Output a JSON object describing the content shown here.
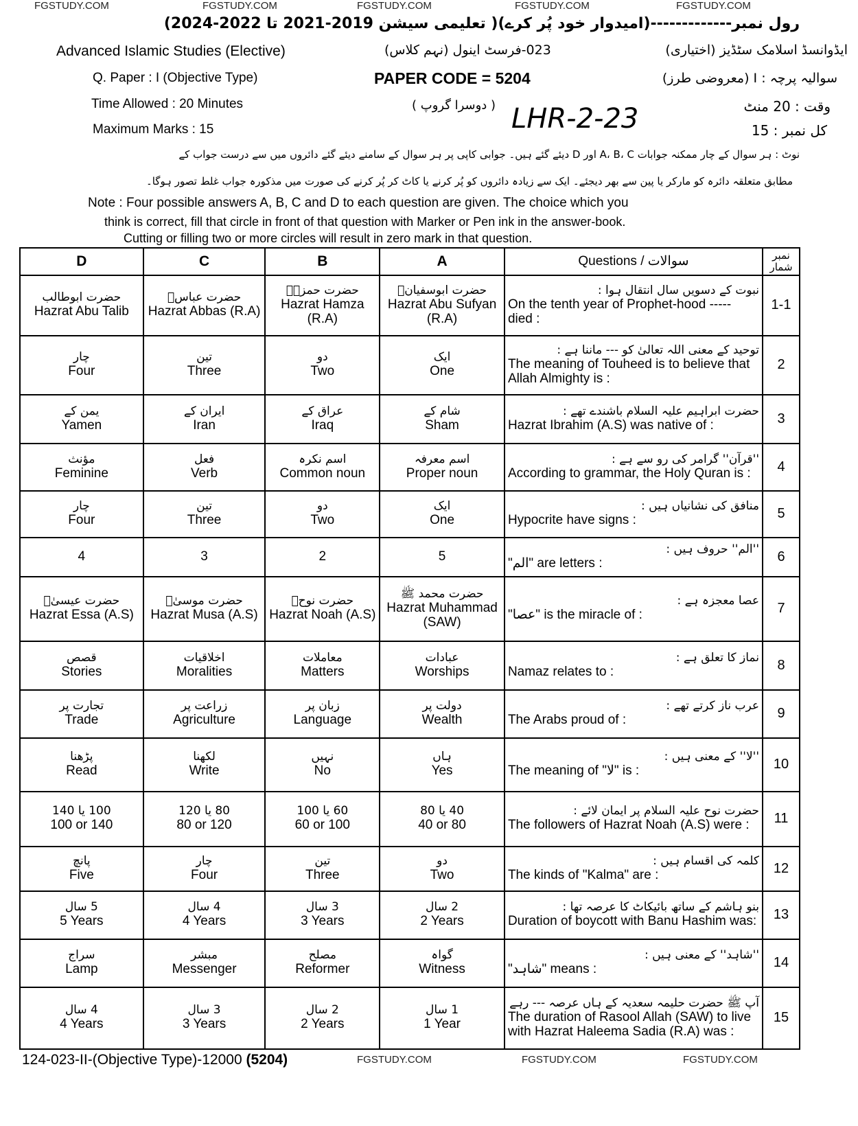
{
  "watermarks": [
    "FGSTUDY.COM",
    "FGSTUDY.COM",
    "FGSTUDY.COM",
    "FGSTUDY.COM",
    "FGSTUDY.COM"
  ],
  "header": {
    "roll_line": "رول نمبر-------------(امیدوار خود پُر کرے)( تعلیمی سیشن 2019-2021 تا 2022-2024)",
    "subject_en": "Advanced Islamic Studies (Elective)",
    "subject_ur": "ایڈوانسڈ اسلامک سٹڈیز (اختیاری)",
    "class_ur": "023-فرسٹ اینول (نہم کلاس)",
    "paper_en": "Q. Paper : I (Objective Type)",
    "paper_code": "PAPER CODE = 5204",
    "paper_ur": "سوالیہ پرچہ : I (معروضی طرز)",
    "time_en": "Time Allowed : 20 Minutes",
    "group_ur": "( دوسرا گروپ )",
    "handwritten": "LHR-2-23",
    "time_ur": "وقت : 20 منٹ",
    "marks_en": "Maximum Marks : 15",
    "marks_ur": "کل نمبر : 15",
    "note_ur_1": "نوٹ : ہر سوال کے چار ممکنہ جوابات A، B، C اور D دیئے گئے ہیں۔ جوابی کاپی پر ہر سوال کے سامنے دیئے گئے دائروں میں سے درست جواب کے",
    "note_ur_2": "مطابق متعلقہ دائرہ کو مارکر یا پین سے بھر دیجئے۔ ایک سے زیادہ دائروں کو پُر کرنے یا کاٹ کر پُر کرنے کی صورت میں مذکورہ جواب غلط تصور ہوگا۔",
    "note_en_1": "Note : Four possible answers A, B, C and D to each question are given. The choice which you",
    "note_en_2": "think is correct, fill that circle in front of that question with Marker or Pen ink in the answer-book.",
    "note_en_3": "Cutting or filling two or more circles will result in zero mark in that question."
  },
  "table": {
    "headers": {
      "d": "D",
      "c": "C",
      "b": "B",
      "a": "A",
      "questions": "Questions / سوالات",
      "number": "نمبر شمار"
    },
    "rows": [
      {
        "no": "1-1",
        "q_ur": "نبوت کے دسویں سال انتقال ہوا :",
        "q_en": "On the tenth year of Prophet-hood ----- died :",
        "a_ur": "حضرت ابوسفیانؓ",
        "a": "Hazrat Abu Sufyan (R.A)",
        "b_ur": "حضرت حمزہؓ",
        "b": "Hazrat Hamza (R.A)",
        "c_ur": "حضرت عباسؓ",
        "c": "Hazrat Abbas (R.A)",
        "d_ur": "حضرت ابوطالب",
        "d": "Hazrat Abu Talib"
      },
      {
        "no": "2",
        "q_ur": "توحید کے معنی اللہ تعالیٰ کو --- ماننا ہے :",
        "q_en": "The meaning of Touheed is to believe that Allah Almighty is :",
        "a_ur": "ایک",
        "a": "One",
        "b_ur": "دو",
        "b": "Two",
        "c_ur": "تین",
        "c": "Three",
        "d_ur": "چار",
        "d": "Four"
      },
      {
        "no": "3",
        "q_ur": "حضرت ابراہیم علیہ السلام باشندے تھے :",
        "q_en": "Hazrat Ibrahim (A.S) was native of :",
        "a_ur": "شام کے",
        "a": "Sham",
        "b_ur": "عراق کے",
        "b": "Iraq",
        "c_ur": "ایران کے",
        "c": "Iran",
        "d_ur": "یمن کے",
        "d": "Yamen"
      },
      {
        "no": "4",
        "q_ur": "''قرآن'' گرامر کی رو سے ہے :",
        "q_en": "According to grammar, the Holy Quran is :",
        "a_ur": "اسم معرفہ",
        "a": "Proper noun",
        "b_ur": "اسم نکرہ",
        "b": "Common noun",
        "c_ur": "فعل",
        "c": "Verb",
        "d_ur": "مؤنث",
        "d": "Feminine"
      },
      {
        "no": "5",
        "q_ur": "منافق کی نشانیاں ہیں :",
        "q_en": "Hypocrite have signs :",
        "a_ur": "ایک",
        "a": "One",
        "b_ur": "دو",
        "b": "Two",
        "c_ur": "تین",
        "c": "Three",
        "d_ur": "چار",
        "d": "Four"
      },
      {
        "no": "6",
        "q_ur": "''الم'' حروف ہیں :",
        "q_en": "\"الم\" are letters :",
        "a_ur": "",
        "a": "5",
        "b_ur": "",
        "b": "2",
        "c_ur": "",
        "c": "3",
        "d_ur": "",
        "d": "4"
      },
      {
        "no": "7",
        "q_ur": "عصا معجزہ ہے :",
        "q_en": "\"عصا\" is the miracle of :",
        "a_ur": "حضرت محمد ﷺ",
        "a": "Hazrat Muhammad (SAW)",
        "b_ur": "حضرت نوحؑ",
        "b": "Hazrat Noah (A.S)",
        "c_ur": "حضرت موسیٰؑ",
        "c": "Hazrat Musa (A.S)",
        "d_ur": "حضرت عیسیٰؑ",
        "d": "Hazrat Essa (A.S)"
      },
      {
        "no": "8",
        "q_ur": "نماز کا تعلق ہے :",
        "q_en": "Namaz relates to :",
        "a_ur": "عبادات",
        "a": "Worships",
        "b_ur": "معاملات",
        "b": "Matters",
        "c_ur": "اخلاقیات",
        "c": "Moralities",
        "d_ur": "قصص",
        "d": "Stories"
      },
      {
        "no": "9",
        "q_ur": "عرب ناز کرتے تھے :",
        "q_en": "The Arabs proud of :",
        "a_ur": "دولت پر",
        "a": "Wealth",
        "b_ur": "زبان پر",
        "b": "Language",
        "c_ur": "زراعت پر",
        "c": "Agriculture",
        "d_ur": "تجارت پر",
        "d": "Trade"
      },
      {
        "no": "10",
        "q_ur": "''لا'' کے معنی ہیں :",
        "q_en": "The meaning of \"لا\" is :",
        "a_ur": "ہاں",
        "a": "Yes",
        "b_ur": "نہیں",
        "b": "No",
        "c_ur": "لکھنا",
        "c": "Write",
        "d_ur": "پڑھنا",
        "d": "Read"
      },
      {
        "no": "11",
        "q_ur": "حضرت نوح علیہ السلام پر ایمان لائے :",
        "q_en": "The followers of Hazrat Noah (A.S) were :",
        "a_ur": "40 یا 80",
        "a": "40 or 80",
        "b_ur": "60 یا 100",
        "b": "60 or 100",
        "c_ur": "80 یا 120",
        "c": "80 or 120",
        "d_ur": "100 یا 140",
        "d": "100 or 140"
      },
      {
        "no": "12",
        "q_ur": "کلمہ کی اقسام ہیں :",
        "q_en": "The kinds of \"Kalma\" are :",
        "a_ur": "دو",
        "a": "Two",
        "b_ur": "تین",
        "b": "Three",
        "c_ur": "چار",
        "c": "Four",
        "d_ur": "پانچ",
        "d": "Five"
      },
      {
        "no": "13",
        "q_ur": "بنو ہاشم کے ساتھ بائیکاٹ کا عرصہ تھا :",
        "q_en": "Duration of boycott with Banu Hashim was:",
        "a_ur": "2 سال",
        "a": "2 Years",
        "b_ur": "3 سال",
        "b": "3 Years",
        "c_ur": "4 سال",
        "c": "4 Years",
        "d_ur": "5 سال",
        "d": "5 Years"
      },
      {
        "no": "14",
        "q_ur": "''شاہد'' کے معنی ہیں :",
        "q_en": "\"شاہد\" means :",
        "a_ur": "گواہ",
        "a": "Witness",
        "b_ur": "مصلح",
        "b": "Reformer",
        "c_ur": "مبشر",
        "c": "Messenger",
        "d_ur": "سراج",
        "d": "Lamp"
      },
      {
        "no": "15",
        "q_ur": "آپ ﷺ حضرت حلیمہ سعدیہ کے ہاں عرصہ --- رہے",
        "q_en": "The duration of Rasool Allah (SAW) to live with Hazrat Haleema Sadia (R.A) was :",
        "a_ur": "1 سال",
        "a": "1 Year",
        "b_ur": "2 سال",
        "b": "2 Years",
        "c_ur": "3 سال",
        "c": "3 Years",
        "d_ur": "4 سال",
        "d": "4 Years"
      }
    ]
  },
  "footer": {
    "code": "124-023-II-(Objective Type)-12000",
    "code_bold": "(5204)"
  }
}
